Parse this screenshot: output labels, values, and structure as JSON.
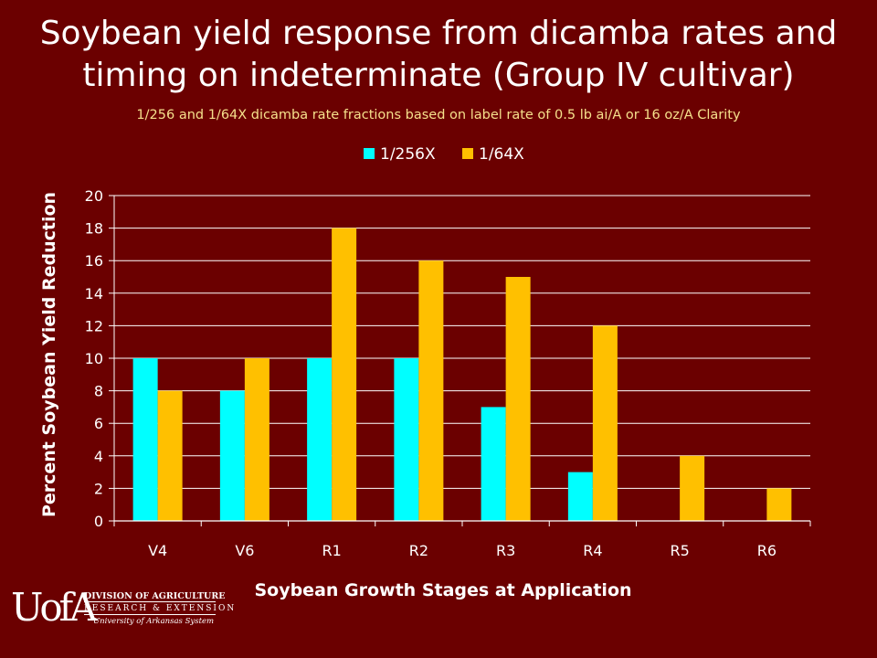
{
  "slide": {
    "title_line1": "Soybean yield response from dicamba rates and",
    "title_line2": "timing on indeterminate (Group IV cultivar)",
    "subtitle": "1/256 and 1/64X dicamba rate fractions based on label rate of 0.5 lb ai/A or 16 oz/A Clarity",
    "background_color": "#6b0000",
    "subtitle_color": "#f5e08c"
  },
  "logo": {
    "mark": "UofA",
    "line1": "DIVISION OF AGRICULTURE",
    "line2": "RESEARCH & EXTENSION",
    "line3": "University of Arkansas System"
  },
  "chart_data": {
    "type": "bar",
    "categories": [
      "V4",
      "V6",
      "R1",
      "R2",
      "R3",
      "R4",
      "R5",
      "R6"
    ],
    "series": [
      {
        "name": "1/256X",
        "values": [
          10,
          8,
          10,
          10,
          7,
          3,
          0,
          0
        ],
        "color": "#00ffff"
      },
      {
        "name": "1/64X",
        "values": [
          8,
          10,
          18,
          16,
          15,
          12,
          4,
          2
        ],
        "color": "#ffc000"
      }
    ],
    "xlabel": "Soybean Growth Stages at Application",
    "ylabel": "Percent Soybean Yield Reduction",
    "ylim": [
      0,
      20
    ],
    "yticks": [
      0,
      2,
      4,
      6,
      8,
      10,
      12,
      14,
      16,
      18,
      20
    ],
    "grid": true,
    "legend": "top-center"
  }
}
